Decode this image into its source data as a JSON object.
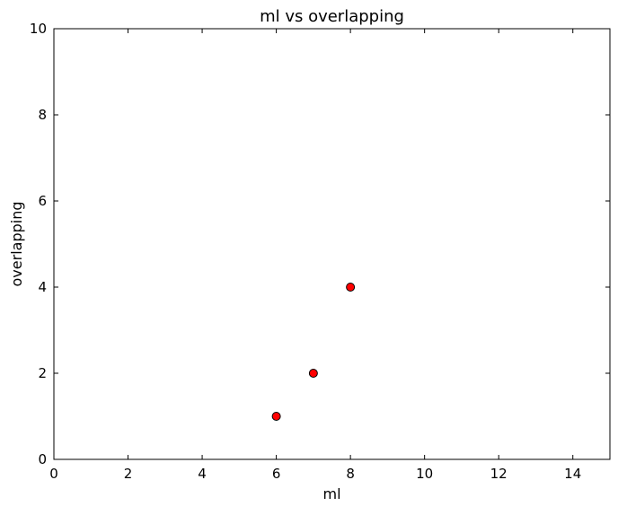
{
  "chart_data": {
    "type": "scatter",
    "title": "ml vs overlapping",
    "xlabel": "ml",
    "ylabel": "overlapping",
    "xlim": [
      0,
      15
    ],
    "ylim": [
      0,
      10
    ],
    "xticks": [
      0,
      2,
      4,
      6,
      8,
      10,
      12,
      14
    ],
    "yticks": [
      0,
      2,
      4,
      6,
      8,
      10
    ],
    "xtick_labels": [
      "0",
      "2",
      "4",
      "6",
      "8",
      "10",
      "12",
      "14"
    ],
    "ytick_labels": [
      "0",
      "2",
      "4",
      "6",
      "8",
      "10"
    ],
    "grid": false,
    "marker_color": "#ff0000",
    "marker_edge_color": "#000000",
    "points": [
      {
        "x": 6,
        "y": 1
      },
      {
        "x": 7,
        "y": 2
      },
      {
        "x": 8,
        "y": 4
      }
    ]
  }
}
